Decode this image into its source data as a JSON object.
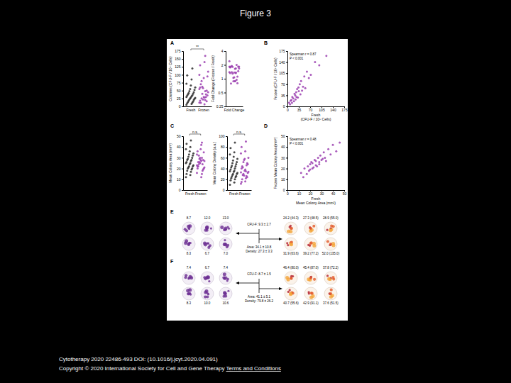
{
  "header": {
    "title": "Figure 3"
  },
  "chart_data": [
    {
      "type": "strip",
      "label": "A",
      "ylabel": "Colonies (CFU-F / 10⁵ Cells)",
      "categories": [
        "Fresh",
        "Frozen"
      ],
      "colors": [
        "#2b2b2b",
        "#9b3fb0"
      ],
      "values": [
        [
          5,
          8,
          10,
          12,
          14,
          15,
          18,
          20,
          22,
          24,
          25,
          27,
          28,
          30,
          32,
          34,
          35,
          38,
          40,
          42,
          45,
          48,
          52,
          55,
          60,
          66,
          72,
          85,
          98,
          120
        ],
        [
          12,
          7,
          18,
          20,
          11,
          30,
          25,
          16,
          40,
          35,
          22,
          45,
          30,
          55,
          28,
          60,
          48,
          70,
          38,
          80,
          50,
          62,
          95,
          58,
          110,
          90,
          100,
          140,
          130,
          160
        ]
      ],
      "ylim": [
        0,
        175
      ],
      "yticks": [
        0,
        25,
        50,
        75,
        100,
        125,
        150,
        175
      ],
      "annotations": [
        "**"
      ]
    },
    {
      "type": "strip",
      "ylabel": "Fold Change (Frozen / Fresh)",
      "categories": [
        "Fold Change"
      ],
      "colors": [
        "#9b3fb0"
      ],
      "values": [
        [
          2.4,
          0.88,
          1.8,
          1.67,
          0.79,
          2.0,
          1.39,
          0.8,
          1.82,
          1.46,
          0.88,
          1.67,
          1.07,
          1.83,
          0.88,
          1.76,
          1.37,
          1.84,
          0.95,
          1.9,
          1.11,
          1.29,
          1.83,
          1.05,
          1.83,
          1.36,
          1.39,
          1.65,
          1.33,
          1.33
        ]
      ],
      "ylim": [
        0.25,
        4
      ],
      "yticks": [
        0.25,
        0.5,
        1,
        2,
        4
      ],
      "log": "y"
    },
    {
      "type": "scatter",
      "label": "B",
      "xlabel": [
        "Fresh",
        "(CFU-F / 10⁵ Cells)"
      ],
      "ylabel": "Frozen (CFU-F / 10⁵ Cells)",
      "x": [
        5,
        8,
        10,
        12,
        14,
        15,
        18,
        20,
        22,
        24,
        25,
        27,
        28,
        30,
        32,
        34,
        35,
        38,
        40,
        42,
        45,
        48,
        52,
        55,
        60,
        66,
        72,
        85,
        98,
        120
      ],
      "values": [
        12,
        7,
        18,
        20,
        11,
        30,
        25,
        16,
        40,
        35,
        22,
        45,
        30,
        55,
        28,
        60,
        48,
        70,
        38,
        80,
        50,
        62,
        95,
        58,
        110,
        90,
        100,
        140,
        130,
        160
      ],
      "color": "#9b3fb0",
      "xlim": [
        0,
        175
      ],
      "xticks": [
        0,
        35,
        70,
        105,
        140,
        175
      ],
      "ylim": [
        0,
        175
      ],
      "yticks": [
        0,
        35,
        70,
        105,
        140,
        175
      ],
      "annotations": [
        "Spearman r = 0.87",
        "P < 0.001"
      ]
    },
    {
      "type": "strip",
      "label": "C",
      "ylabel": "Mean Colony Area (mm²)",
      "categories": [
        "Fresh",
        "Frozen"
      ],
      "colors": [
        "#2b2b2b",
        "#9b3fb0"
      ],
      "values": [
        [
          12,
          14,
          15,
          17,
          18,
          19,
          20,
          20,
          21,
          22,
          22,
          23,
          24,
          25,
          25,
          26,
          27,
          28,
          28,
          29,
          30,
          31,
          32,
          33,
          34,
          36,
          38,
          40,
          43,
          46
        ],
        [
          16,
          12,
          20,
          15,
          22,
          18,
          24,
          19,
          26,
          20,
          25,
          21,
          28,
          23,
          27,
          22,
          30,
          26,
          24,
          32,
          28,
          29,
          35,
          30,
          27,
          38,
          33,
          42,
          36,
          44
        ]
      ],
      "ylim": [
        0,
        50
      ],
      "yticks": [
        0,
        10,
        20,
        30,
        40,
        50
      ],
      "annotations": [
        "n.s."
      ]
    },
    {
      "type": "strip",
      "ylabel": "Mean Colony Density (a.u.)",
      "categories": [
        "Fresh",
        "Frozen"
      ],
      "colors": [
        "#2b2b2b",
        "#9b3fb0"
      ],
      "values": [
        [
          10,
          14,
          18,
          20,
          22,
          24,
          25,
          26,
          28,
          30,
          30,
          32,
          34,
          35,
          36,
          38,
          40,
          42,
          44,
          45,
          48,
          50,
          52,
          55,
          58,
          62,
          66,
          70,
          78,
          88
        ],
        [
          12,
          16,
          15,
          22,
          20,
          26,
          28,
          24,
          30,
          32,
          27,
          34,
          36,
          33,
          38,
          40,
          35,
          44,
          46,
          42,
          50,
          52,
          48,
          56,
          60,
          58,
          68,
          72,
          80,
          90
        ]
      ],
      "ylim": [
        0,
        100
      ],
      "yticks": [
        0,
        20,
        40,
        60,
        80,
        100
      ],
      "annotations": [
        "n.s."
      ]
    },
    {
      "type": "scatter",
      "label": "D",
      "xlabel": [
        "Fresh",
        "Mean Colony Area (mm²)"
      ],
      "ylabel": "Frozen Mean Colony Area (mm²)",
      "x": [
        12,
        14,
        15,
        17,
        18,
        19,
        20,
        20,
        21,
        22,
        22,
        23,
        24,
        25,
        25,
        26,
        27,
        28,
        28,
        29,
        30,
        31,
        32,
        33,
        34,
        36,
        38,
        40,
        43,
        46
      ],
      "values": [
        16,
        12,
        20,
        15,
        22,
        18,
        24,
        19,
        26,
        20,
        25,
        21,
        28,
        23,
        27,
        22,
        30,
        26,
        24,
        32,
        28,
        29,
        35,
        30,
        27,
        38,
        33,
        42,
        36,
        44
      ],
      "color": "#9b3fb0",
      "xlim": [
        0,
        50
      ],
      "xticks": [
        0,
        10,
        20,
        30,
        40,
        50
      ],
      "ylim": [
        0,
        50
      ],
      "yticks": [
        0,
        10,
        20,
        30,
        40,
        50
      ],
      "annotations": [
        "Spearman r = 0.48",
        "P < 0.001"
      ]
    }
  ],
  "image_panels": [
    {
      "label": "E",
      "left_labels": [
        [
          "8.7",
          "12.0",
          "13.0"
        ],
        [
          "8.3",
          "6.7",
          "7.0"
        ]
      ],
      "summary": [
        "CFU-F: 9.3 ± 2.7",
        "Area: 34.1 ± 10.8",
        "Density: 27.3 ± 3.3"
      ],
      "right_labels": [
        [
          "24.2 (44.3)",
          "27.3 (48.5)",
          "28.9 (55.0)"
        ],
        [
          "31.9 (63.6)",
          "39.2 (77.2)",
          "52.0 (135.0)"
        ]
      ]
    },
    {
      "label": "F",
      "left_labels": [
        [
          "7.4",
          "6.7",
          "7.4"
        ],
        [
          "8.3",
          "10.0",
          "10.6"
        ]
      ],
      "summary": [
        "CFU-F: 8.7 ± 1.5",
        "Area: 41.1 ± 5.1",
        "Density: 79.8 ± 26.2"
      ],
      "right_labels": [
        [
          "46.4 (80.0)",
          "45.4 (87.0)",
          "37.8 (72.2)"
        ],
        [
          "40.7 (55.6)",
          "42.9 (91.1)",
          "37.6 (51.5)"
        ]
      ]
    }
  ],
  "footer": {
    "citation": "Cytotherapy 2020 22486-493 DOI: (10.1016/j.jcyt.2020.04.091)",
    "copyright": "Copyright © 2020 International Society for Cell and Gene Therapy",
    "link": "Terms and Conditions"
  }
}
